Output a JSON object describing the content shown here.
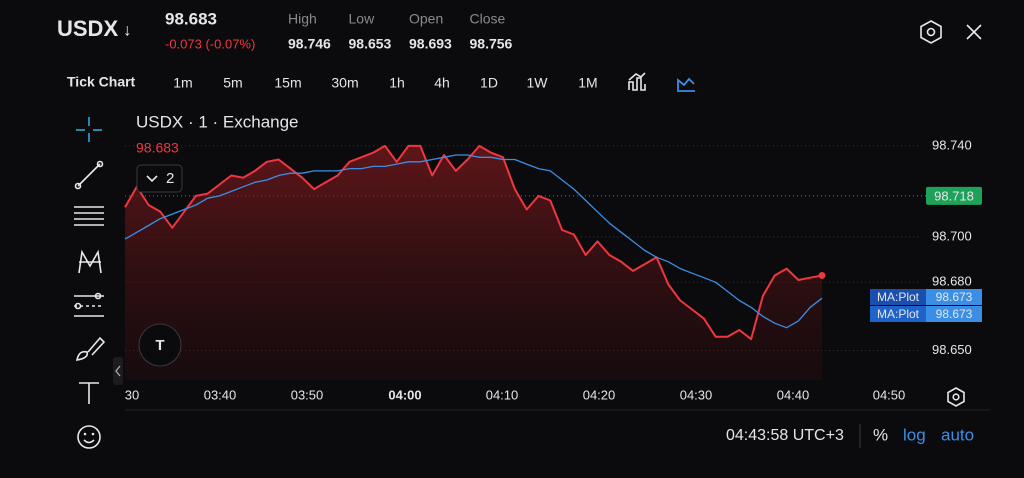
{
  "header": {
    "symbol": "USDX",
    "direction": "↓",
    "price": "98.683",
    "change": "-0.073 (-0.07%)",
    "stats": [
      {
        "label": "High",
        "value": "98.746"
      },
      {
        "label": "Low",
        "value": "98.653"
      },
      {
        "label": "Open",
        "value": "98.693"
      },
      {
        "label": "Close",
        "value": "98.756"
      }
    ]
  },
  "toolbar": {
    "mode": "Tick Chart",
    "intervals": [
      "1m",
      "5m",
      "15m",
      "30m",
      "1h",
      "4h",
      "1D",
      "1W",
      "1M"
    ]
  },
  "chart_data": {
    "type": "line",
    "title": "USDX · 1 · Exchange",
    "last_label": "98.683",
    "indicator_count": "2",
    "xticks": [
      "30",
      "03:40",
      "03:50",
      "04:00",
      "04:10",
      "04:20",
      "04:30",
      "04:40",
      "04:50"
    ],
    "ylim": [
      98.637,
      98.747
    ],
    "yticks": [
      {
        "value": 98.74,
        "label": "98.740"
      },
      {
        "value": 98.7,
        "label": "98.700"
      },
      {
        "value": 98.68,
        "label": "98.680"
      },
      {
        "value": 98.65,
        "label": "98.650"
      }
    ],
    "grid": true,
    "price_line": {
      "value": 98.718,
      "label": "98.718",
      "color": "#1fa15a"
    },
    "tags": [
      {
        "name": "MA:Plot",
        "value": "98.673"
      },
      {
        "name": "MA:Plot",
        "value": "98.673"
      }
    ],
    "series": [
      {
        "name": "USDX",
        "color": "#f0363f",
        "values": [
          98.713,
          98.722,
          98.714,
          98.711,
          98.704,
          98.711,
          98.718,
          98.719,
          98.723,
          98.727,
          98.726,
          98.729,
          98.733,
          98.734,
          98.73,
          98.726,
          98.721,
          98.724,
          98.727,
          98.733,
          98.735,
          98.737,
          98.74,
          98.733,
          98.74,
          98.74,
          98.727,
          98.736,
          98.729,
          98.734,
          98.74,
          98.737,
          98.735,
          98.721,
          98.712,
          98.718,
          98.716,
          98.703,
          98.701,
          98.692,
          98.698,
          98.692,
          98.689,
          98.685,
          98.688,
          98.691,
          98.679,
          98.672,
          98.668,
          98.664,
          98.656,
          98.656,
          98.659,
          98.655,
          98.674,
          98.683,
          98.686,
          98.681,
          98.682,
          98.683
        ]
      },
      {
        "name": "MA:Plot",
        "color": "#3a8ee6",
        "values": [
          98.699,
          98.702,
          98.705,
          98.708,
          98.71,
          98.712,
          98.714,
          98.717,
          98.718,
          98.72,
          98.722,
          98.724,
          98.725,
          98.727,
          98.728,
          98.728,
          98.729,
          98.729,
          98.729,
          98.73,
          98.73,
          98.731,
          98.731,
          98.732,
          98.733,
          98.733,
          98.734,
          98.735,
          98.736,
          98.736,
          98.735,
          98.735,
          98.734,
          98.734,
          98.732,
          98.73,
          98.729,
          98.725,
          98.721,
          98.716,
          98.711,
          98.706,
          98.702,
          98.698,
          98.694,
          98.691,
          98.689,
          98.686,
          98.684,
          98.682,
          98.68,
          98.676,
          98.672,
          98.669,
          98.665,
          98.662,
          98.66,
          98.663,
          98.669,
          98.673
        ]
      }
    ]
  },
  "footer": {
    "time": "04:43:58 UTC+3",
    "percent": "%",
    "log": "log",
    "auto": "auto"
  }
}
